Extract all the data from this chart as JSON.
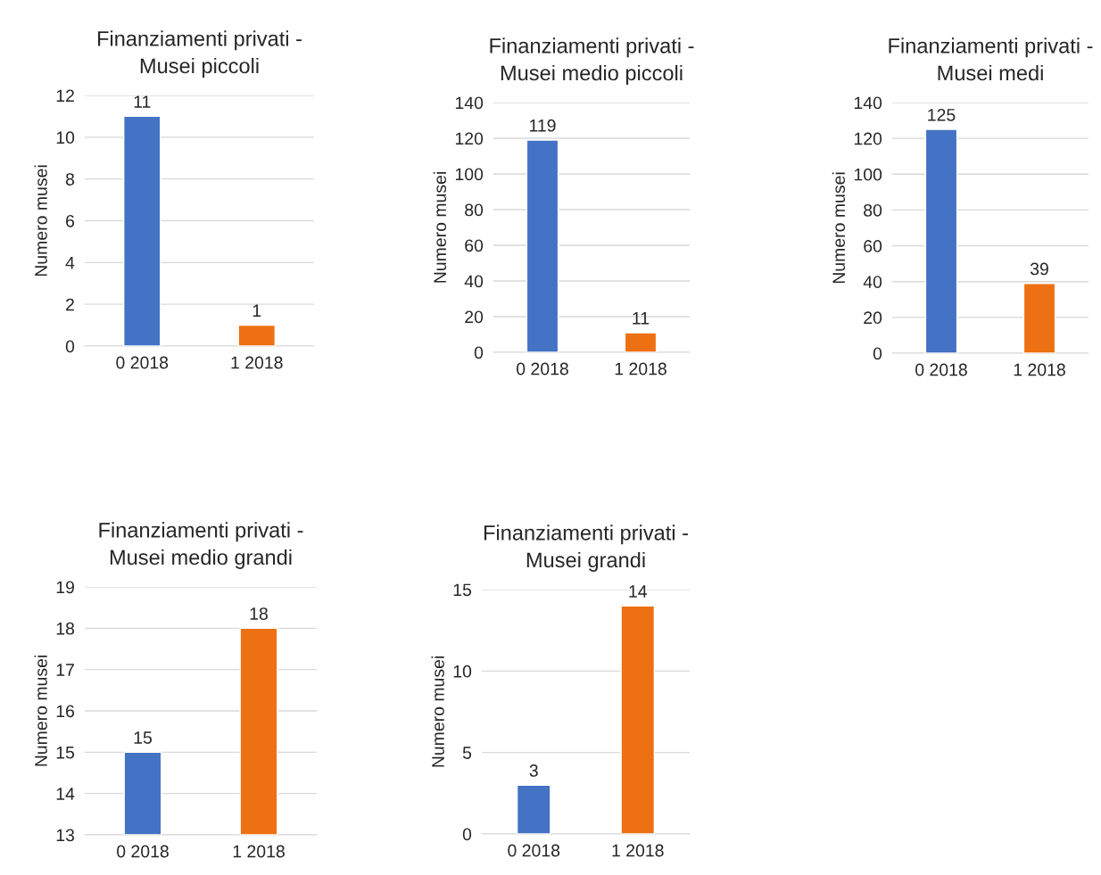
{
  "chart_data": [
    {
      "type": "bar",
      "title": "Finanziamenti privati -\nMusei piccoli",
      "ylabel": "Numero musei",
      "categories": [
        "0 2018",
        "1 2018"
      ],
      "values": [
        11,
        1
      ],
      "colors": [
        "#4472c4",
        "#ed7112"
      ],
      "ylim": [
        0,
        12
      ],
      "yticks": [
        0,
        2,
        4,
        6,
        8,
        10,
        12
      ],
      "grid": "y",
      "data_labels": true,
      "legend": false
    },
    {
      "type": "bar",
      "title": "Finanziamenti privati -\nMusei medio piccoli",
      "ylabel": "Numero musei",
      "categories": [
        "0 2018",
        "1 2018"
      ],
      "values": [
        119,
        11
      ],
      "colors": [
        "#4472c4",
        "#ed7112"
      ],
      "ylim": [
        0,
        140
      ],
      "yticks": [
        0,
        20,
        40,
        60,
        80,
        100,
        120,
        140
      ],
      "grid": "y",
      "data_labels": true,
      "legend": false
    },
    {
      "type": "bar",
      "title": "Finanziamenti privati -\nMusei medi",
      "ylabel": "Numero musei",
      "categories": [
        "0 2018",
        "1 2018"
      ],
      "values": [
        125,
        39
      ],
      "colors": [
        "#4472c4",
        "#ed7112"
      ],
      "ylim": [
        0,
        140
      ],
      "yticks": [
        0,
        20,
        40,
        60,
        80,
        100,
        120,
        140
      ],
      "grid": "y",
      "data_labels": true,
      "legend": false
    },
    {
      "type": "bar",
      "title": "Finanziamenti privati -\nMusei medio grandi",
      "ylabel": "Numero musei",
      "categories": [
        "0 2018",
        "1 2018"
      ],
      "values": [
        15,
        18
      ],
      "colors": [
        "#4472c4",
        "#ed7112"
      ],
      "ylim": [
        13,
        19
      ],
      "yticks": [
        13,
        14,
        15,
        16,
        17,
        18,
        19
      ],
      "grid": "y",
      "data_labels": true,
      "legend": false
    },
    {
      "type": "bar",
      "title": "Finanziamenti privati -\nMusei grandi",
      "ylabel": "Numero musei",
      "categories": [
        "0 2018",
        "1 2018"
      ],
      "values": [
        3,
        14
      ],
      "colors": [
        "#4472c4",
        "#ed7112"
      ],
      "ylim": [
        0,
        15
      ],
      "yticks": [
        0,
        5,
        10,
        15
      ],
      "grid": "y",
      "data_labels": true,
      "legend": false
    }
  ]
}
